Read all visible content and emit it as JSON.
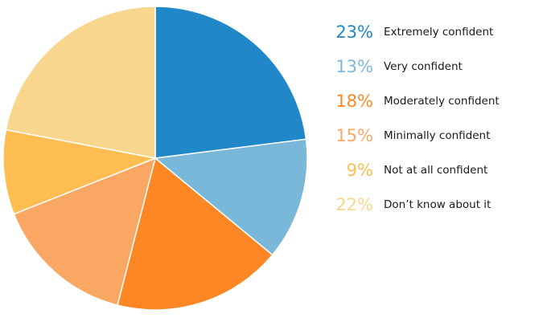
{
  "chart_data": {
    "type": "pie",
    "slices": [
      {
        "label": "Extremely confident",
        "value": 23,
        "value_label": "23%",
        "color": "#2087c8"
      },
      {
        "label": "Very confident",
        "value": 13,
        "value_label": "13%",
        "color": "#7ab8da"
      },
      {
        "label": "Moderately confident",
        "value": 18,
        "value_label": "18%",
        "color": "#fd8725"
      },
      {
        "label": "Minimally confident",
        "value": 15,
        "value_label": "15%",
        "color": "#f9a762"
      },
      {
        "label": "Not at all confident",
        "value": 9,
        "value_label": "9%",
        "color": "#fdbd50"
      },
      {
        "label": "Don’t know about it",
        "value": 22,
        "value_label": "22%",
        "color": "#f9d68e"
      }
    ],
    "legend_position": "right"
  }
}
